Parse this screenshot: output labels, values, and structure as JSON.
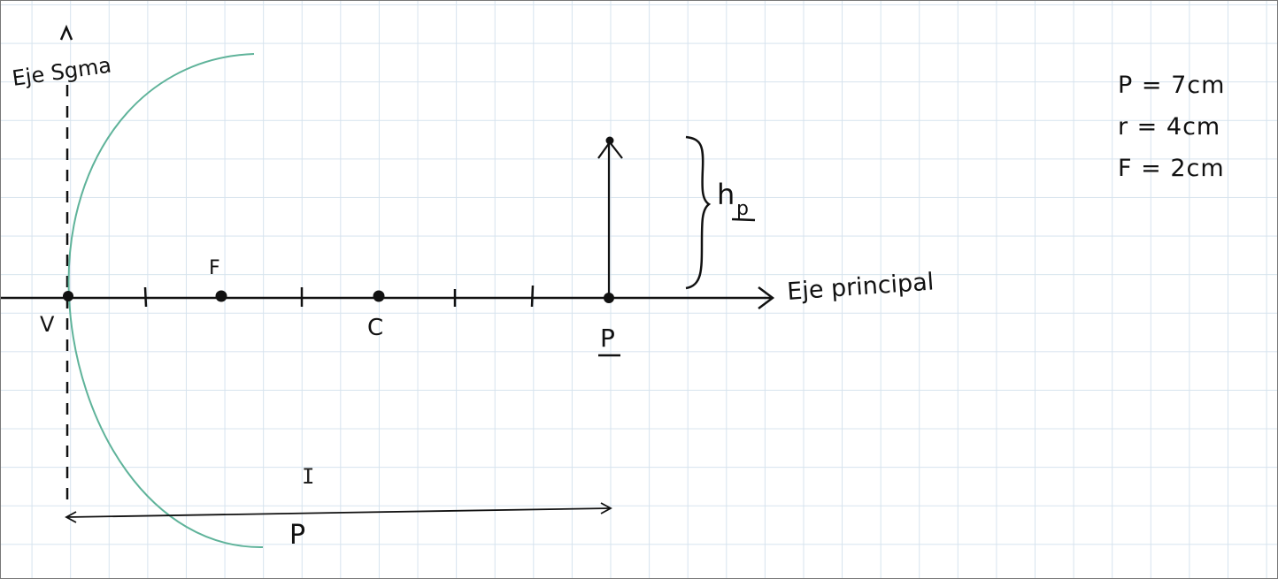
{
  "labels": {
    "secondary_axis": "Eje Sgma",
    "principal_axis": "Eje principal",
    "vertex": "V",
    "focus": "F",
    "center": "C",
    "object_position": "P",
    "object_height": "h",
    "object_height_sub": "p",
    "distance": "P"
  },
  "parameters": [
    "P = 7cm",
    "r = 4cm",
    "F = 2cm"
  ],
  "colors": {
    "mirror": "#5fb39a",
    "ink": "#111111",
    "grid": "#d6e3ee"
  },
  "cursor_icon": "I"
}
